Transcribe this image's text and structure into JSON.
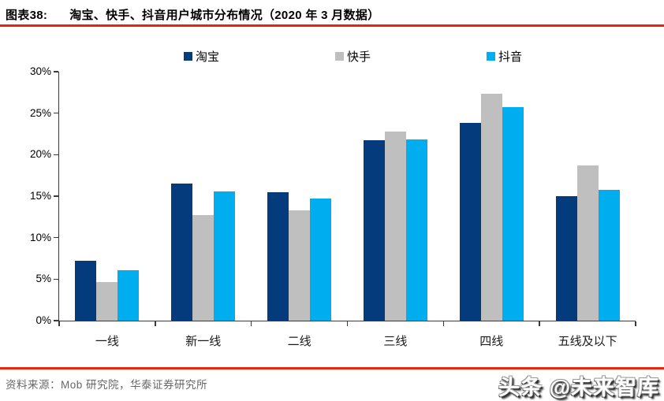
{
  "header": {
    "figure_label": "图表38:",
    "title": "淘宝、快手、抖音用户城市分布情况（2020 年 3 月数据）"
  },
  "colors": {
    "accent_red": "#e8250e",
    "taobao": "#043b7c",
    "kuaishou": "#bfbfbf",
    "douyin": "#00aeef",
    "axis": "#3a3a3a"
  },
  "chart_data": {
    "type": "bar",
    "categories": [
      "一线",
      "新一线",
      "二线",
      "三线",
      "四线",
      "五线及以下"
    ],
    "series": [
      {
        "name": "淘宝",
        "color": "#043b7c",
        "values": [
          7.2,
          16.5,
          15.5,
          21.7,
          23.8,
          15.0
        ]
      },
      {
        "name": "快手",
        "color": "#bfbfbf",
        "values": [
          4.7,
          12.7,
          13.3,
          22.8,
          27.3,
          18.7
        ]
      },
      {
        "name": "抖音",
        "color": "#00aeef",
        "values": [
          6.1,
          15.6,
          14.7,
          21.8,
          25.7,
          15.8
        ]
      }
    ],
    "title": "淘宝、快手、抖音用户城市分布情况（2020 年 3 月数据）",
    "xlabel": "",
    "ylabel": "",
    "ylim": [
      0,
      30
    ],
    "ytick_step": 5,
    "ytick_labels": [
      "0%",
      "5%",
      "10%",
      "15%",
      "20%",
      "25%",
      "30%"
    ],
    "grid": false,
    "legend_position": "top"
  },
  "footer": {
    "source": "资料来源：Mob 研究院，华泰证券研究所"
  },
  "watermark": {
    "text": "头条 @未来智库"
  }
}
